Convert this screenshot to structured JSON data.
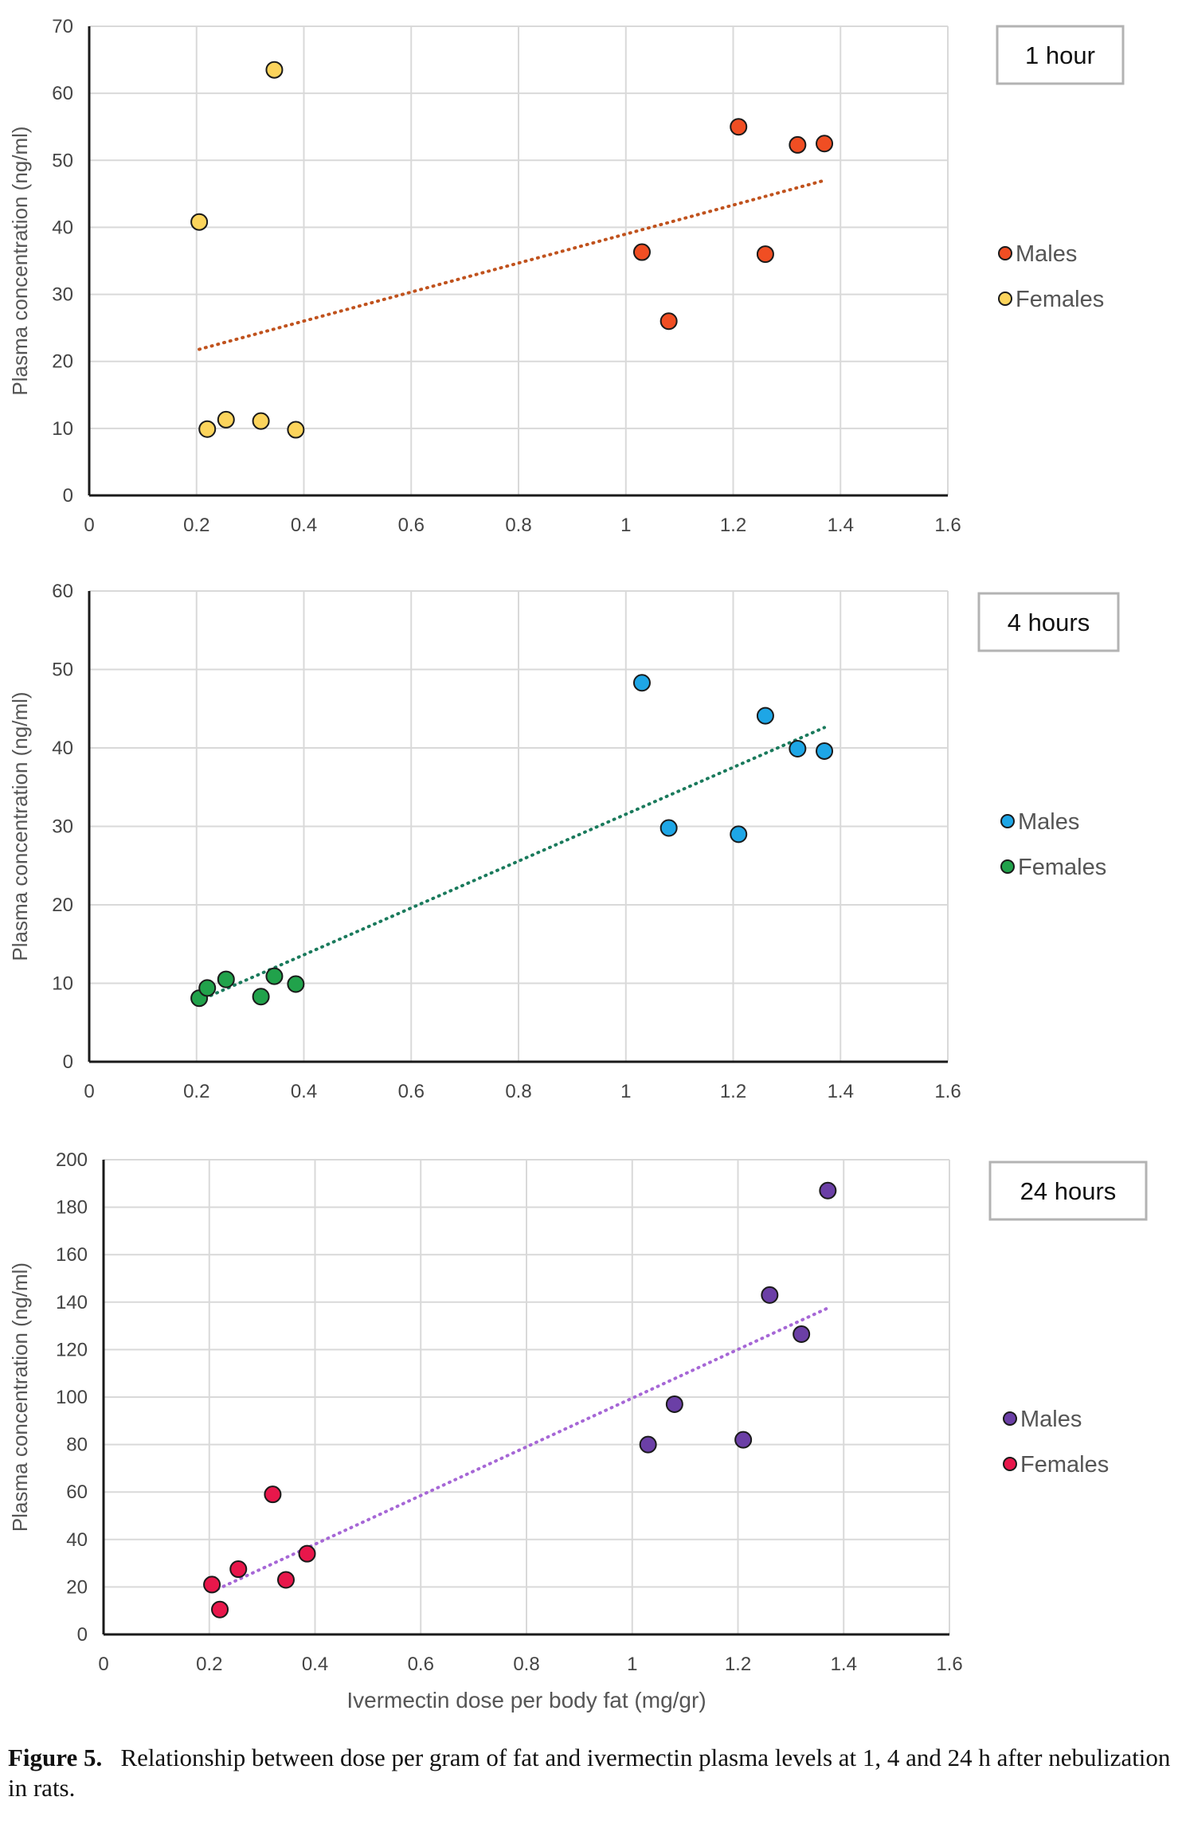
{
  "caption": {
    "label": "Figure 5.",
    "text": "Relationship between dose per gram of fat and ivermectin plasma levels at 1, 4 and 24 h after nebulization in rats."
  },
  "chart_data": [
    {
      "type": "scatter",
      "panel_label": "1 hour",
      "ylabel": "Plasma concentration (ng/ml)",
      "xlabel": "",
      "xlim": [
        0,
        1.6
      ],
      "ylim": [
        0,
        70
      ],
      "xticks": [
        "0",
        "0.2",
        "0.4",
        "0.6",
        "0.8",
        "1",
        "1.2",
        "1.4",
        "1.6"
      ],
      "yticks": [
        "0",
        "10",
        "20",
        "30",
        "40",
        "50",
        "60",
        "70"
      ],
      "grid": true,
      "legend_position": "right",
      "series": [
        {
          "name": "Males",
          "color": "#f04e23",
          "points": [
            [
              1.03,
              36.3
            ],
            [
              1.08,
              26.0
            ],
            [
              1.21,
              55.0
            ],
            [
              1.26,
              36.0
            ],
            [
              1.32,
              52.3
            ],
            [
              1.37,
              52.5
            ]
          ]
        },
        {
          "name": "Females",
          "color": "#fcd45c",
          "points": [
            [
              0.205,
              40.8
            ],
            [
              0.22,
              9.9
            ],
            [
              0.255,
              11.3
            ],
            [
              0.32,
              11.1
            ],
            [
              0.345,
              63.5
            ],
            [
              0.385,
              9.8
            ]
          ]
        }
      ],
      "trendline": {
        "color": "#c0521d",
        "from": [
          0.205,
          21.8
        ],
        "to": [
          1.37,
          47.0
        ]
      }
    },
    {
      "type": "scatter",
      "panel_label": "4 hours",
      "ylabel": "Plasma concentration (ng/ml)",
      "xlabel": "",
      "xlim": [
        0,
        1.6
      ],
      "ylim": [
        0,
        60
      ],
      "xticks": [
        "0",
        "0.2",
        "0.4",
        "0.6",
        "0.8",
        "1",
        "1.2",
        "1.4",
        "1.6"
      ],
      "yticks": [
        "0",
        "10",
        "20",
        "30",
        "40",
        "50",
        "60"
      ],
      "grid": true,
      "legend_position": "right",
      "series": [
        {
          "name": "Males",
          "color": "#1ea6e6",
          "points": [
            [
              1.03,
              48.3
            ],
            [
              1.08,
              29.8
            ],
            [
              1.21,
              29.0
            ],
            [
              1.26,
              44.1
            ],
            [
              1.32,
              39.9
            ],
            [
              1.37,
              39.6
            ]
          ]
        },
        {
          "name": "Females",
          "color": "#21a24b",
          "points": [
            [
              0.205,
              8.1
            ],
            [
              0.22,
              9.4
            ],
            [
              0.255,
              10.5
            ],
            [
              0.32,
              8.3
            ],
            [
              0.345,
              10.9
            ],
            [
              0.385,
              9.9
            ]
          ]
        }
      ],
      "trendline": {
        "color": "#1a7a5c",
        "from": [
          0.205,
          7.8
        ],
        "to": [
          1.37,
          42.6
        ]
      }
    },
    {
      "type": "scatter",
      "panel_label": "24 hours",
      "ylabel": "Plasma concentration (ng/ml)",
      "xlabel": "Ivermectin dose per body fat (mg/gr)",
      "xlim": [
        0,
        1.6
      ],
      "ylim": [
        0,
        200
      ],
      "xticks": [
        "0",
        "0.2",
        "0.4",
        "0.6",
        "0.8",
        "1",
        "1.2",
        "1.4",
        "1.6"
      ],
      "yticks": [
        "0",
        "20",
        "40",
        "60",
        "80",
        "100",
        "120",
        "140",
        "160",
        "180",
        "200"
      ],
      "grid": true,
      "legend_position": "right",
      "series": [
        {
          "name": "Males",
          "color": "#6b3fa6",
          "points": [
            [
              1.03,
              80
            ],
            [
              1.08,
              97
            ],
            [
              1.21,
              82
            ],
            [
              1.26,
              143
            ],
            [
              1.32,
              126.5
            ],
            [
              1.37,
              187
            ]
          ]
        },
        {
          "name": "Females",
          "color": "#e8174b",
          "points": [
            [
              0.205,
              21
            ],
            [
              0.22,
              10.5
            ],
            [
              0.255,
              27.5
            ],
            [
              0.32,
              59
            ],
            [
              0.345,
              23
            ],
            [
              0.385,
              34
            ]
          ]
        }
      ],
      "trendline": {
        "color": "#a667d6",
        "from": [
          0.205,
          18
        ],
        "to": [
          1.37,
          137.5
        ]
      }
    }
  ]
}
